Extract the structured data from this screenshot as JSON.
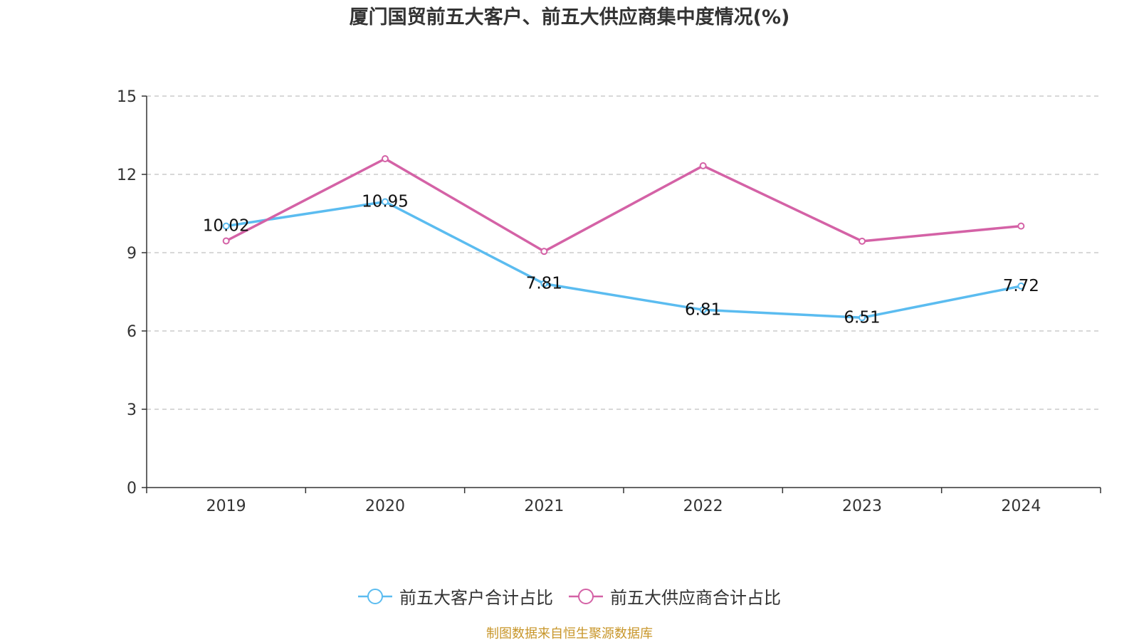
{
  "title": "厦门国贸前五大客户、前五大供应商集中度情况(%)",
  "source": "制图数据来自恒生聚源数据库",
  "chart_data": {
    "type": "line",
    "title": "厦门国贸前五大客户、前五大供应商集中度情况(%)",
    "categories": [
      "2019",
      "2020",
      "2021",
      "2022",
      "2023",
      "2024"
    ],
    "ylim": [
      0,
      15
    ],
    "yticks": [
      0,
      3,
      6,
      9,
      12,
      15
    ],
    "grid": true,
    "legend_position": "bottom",
    "series": [
      {
        "name": "前五大客户合计占比",
        "color": "#5bbcf0",
        "values": [
          10.02,
          10.95,
          7.81,
          6.81,
          6.51,
          7.72
        ],
        "labels": [
          "10.02",
          "10.95",
          "7.81",
          "6.81",
          "6.51",
          "7.72"
        ]
      },
      {
        "name": "前五大供应商合计占比",
        "color": "#d462a6",
        "values": [
          9.45,
          12.6,
          9.05,
          12.33,
          9.44,
          10.02
        ]
      }
    ]
  }
}
